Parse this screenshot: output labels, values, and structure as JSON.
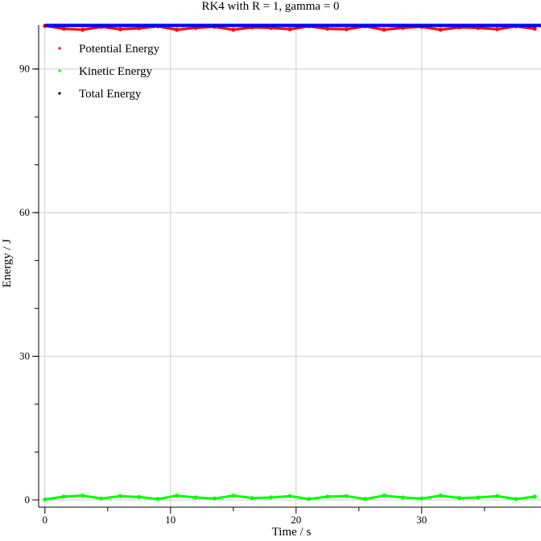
{
  "chart_data": {
    "type": "scatter",
    "title": "RK4 with R = 1, gamma = 0",
    "xlabel": "Time / s",
    "ylabel": "Energy / J",
    "xlim": [
      -0.5,
      39.5
    ],
    "ylim": [
      0,
      99.2
    ],
    "xticks": [
      0,
      10,
      20,
      30
    ],
    "yticks": [
      0,
      30,
      60,
      90
    ],
    "grid": true,
    "legend_position": "top-left",
    "series": [
      {
        "name": "Potential Energy",
        "color": "#ff0000",
        "x": [
          0,
          1.5,
          3.0,
          4.5,
          6.0,
          7.5,
          9.0,
          10.5,
          12.0,
          13.5,
          15.0,
          16.5,
          18.0,
          19.5,
          21.0,
          22.5,
          24.0,
          25.5,
          27.0,
          28.5,
          30.0,
          31.5,
          33.0,
          34.5,
          36.0,
          37.5,
          39.0
        ],
        "y": [
          99.0,
          98.4,
          98.2,
          98.8,
          98.3,
          98.5,
          98.9,
          98.2,
          98.6,
          98.8,
          98.2,
          98.7,
          98.6,
          98.3,
          98.9,
          98.4,
          98.3,
          98.9,
          98.2,
          98.6,
          98.8,
          98.2,
          98.7,
          98.6,
          98.3,
          98.9,
          98.4
        ]
      },
      {
        "name": "Kinetic Energy",
        "color": "#00ff00",
        "x": [
          0,
          1.5,
          3.0,
          4.5,
          6.0,
          7.5,
          9.0,
          10.5,
          12.0,
          13.5,
          15.0,
          16.5,
          18.0,
          19.5,
          21.0,
          22.5,
          24.0,
          25.5,
          27.0,
          28.5,
          30.0,
          31.5,
          33.0,
          34.5,
          36.0,
          37.5,
          39.0
        ],
        "y": [
          0.1,
          0.7,
          0.9,
          0.3,
          0.8,
          0.6,
          0.2,
          0.9,
          0.5,
          0.3,
          0.9,
          0.4,
          0.5,
          0.8,
          0.2,
          0.7,
          0.8,
          0.2,
          0.9,
          0.5,
          0.3,
          0.9,
          0.4,
          0.5,
          0.8,
          0.2,
          0.7
        ]
      },
      {
        "name": "Total Energy",
        "color": "#000000",
        "x": [
          0,
          39.5
        ],
        "y": [
          99.1,
          99.1
        ]
      },
      {
        "name": "",
        "color": "#0000ff",
        "x": [
          0,
          39.5
        ],
        "y": [
          99.1,
          99.1
        ]
      }
    ]
  }
}
